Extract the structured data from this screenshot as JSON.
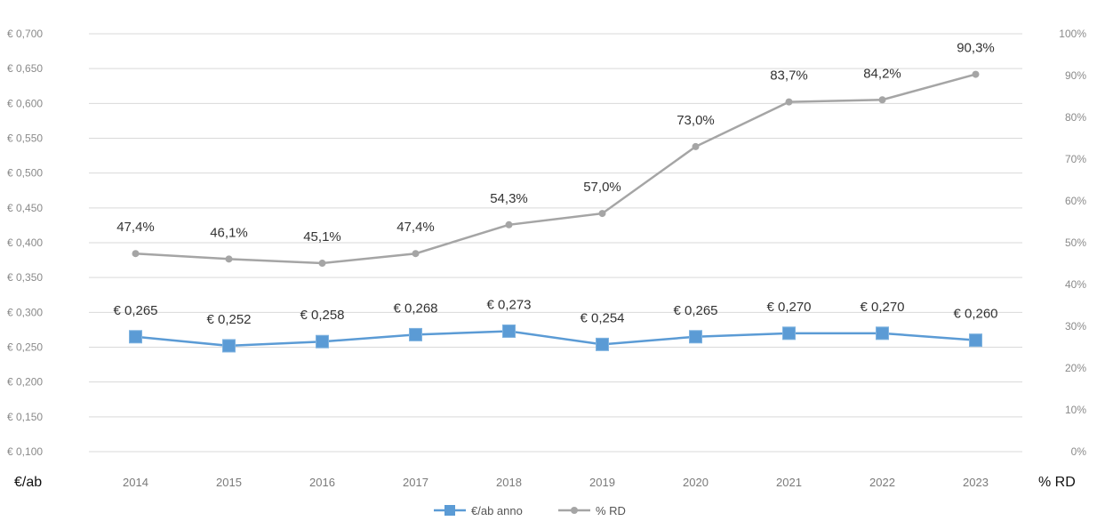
{
  "chart_data": {
    "type": "line",
    "title": "",
    "x_unit_label": "% RD",
    "left_unit_label": "€/ab",
    "categories": [
      "2014",
      "2015",
      "2016",
      "2017",
      "2018",
      "2019",
      "2020",
      "2021",
      "2022",
      "2023"
    ],
    "x_tick_labels": [
      "2014",
      "2015",
      "2016",
      "2017",
      "2018",
      "2019",
      "2020",
      "2021",
      "2022",
      "2023"
    ],
    "left_axis": {
      "ylim": [
        0.1,
        0.7
      ],
      "ticks": [
        0.1,
        0.15,
        0.2,
        0.25,
        0.3,
        0.35,
        0.4,
        0.45,
        0.5,
        0.55,
        0.6,
        0.65,
        0.7
      ],
      "tick_labels": [
        "€ 0,100",
        "€ 0,150",
        "€ 0,200",
        "€ 0,250",
        "€ 0,300",
        "€ 0,350",
        "€ 0,400",
        "€ 0,450",
        "€ 0,500",
        "€ 0,550",
        "€ 0,600",
        "€ 0,650",
        "€ 0,700"
      ]
    },
    "right_axis": {
      "ylim": [
        0,
        100
      ],
      "ticks": [
        0,
        10,
        20,
        30,
        40,
        50,
        60,
        70,
        80,
        90,
        100
      ],
      "tick_labels": [
        "0%",
        "10%",
        "20%",
        "30%",
        "40%",
        "50%",
        "60%",
        "70%",
        "80%",
        "90%",
        "100%"
      ]
    },
    "grid": true,
    "legend_position": "bottom",
    "series": [
      {
        "name": "€/ab anno",
        "axis": "left",
        "color": "#5b9bd5",
        "values": [
          0.265,
          0.252,
          0.258,
          0.268,
          0.273,
          0.254,
          0.265,
          0.27,
          0.27,
          0.26
        ],
        "labels": [
          "€ 0,265",
          "€ 0,252",
          "€ 0,258",
          "€ 0,268",
          "€ 0,273",
          "€ 0,254",
          "€ 0,265",
          "€ 0,270",
          "€ 0,270",
          "€ 0,260"
        ]
      },
      {
        "name": "% RD",
        "axis": "right",
        "color": "#a5a5a5",
        "values": [
          47.4,
          46.1,
          45.1,
          47.4,
          54.3,
          57.0,
          73.0,
          83.7,
          84.2,
          90.3
        ],
        "labels": [
          "47,4%",
          "46,1%",
          "45,1%",
          "47,4%",
          "54,3%",
          "57,0%",
          "73,0%",
          "83,7%",
          "84,2%",
          "90,3%"
        ]
      }
    ]
  }
}
